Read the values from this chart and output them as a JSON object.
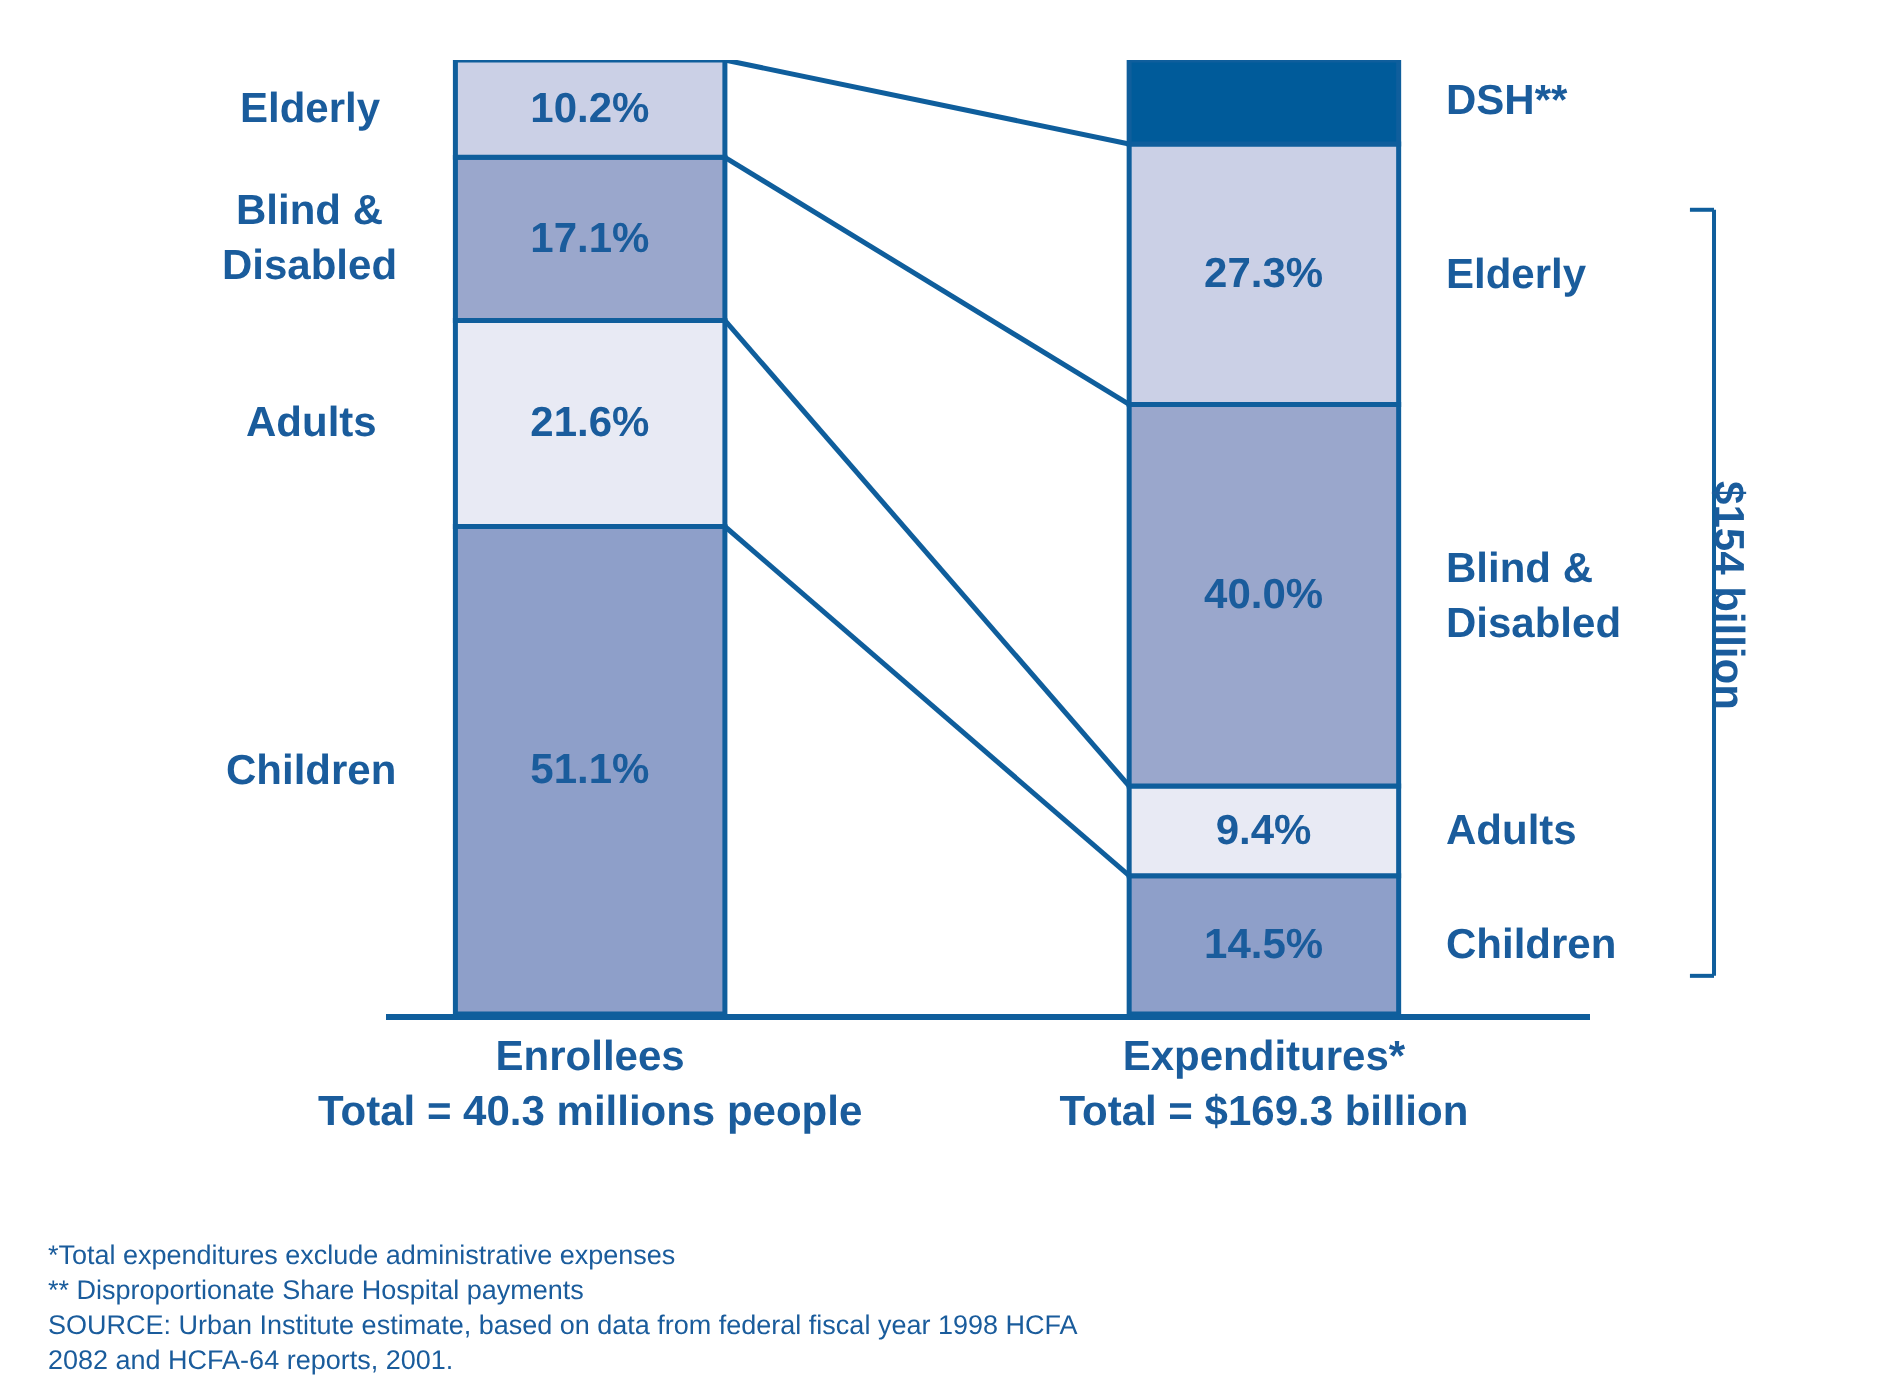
{
  "chart_data": {
    "type": "bar",
    "stacked": true,
    "categories": [
      "Enrollees\nTotal = 40.3 millions people",
      "Expenditures*\nTotal = $169.3 billion"
    ],
    "series": [
      {
        "name": "Children",
        "color": "#8e9fc9",
        "values": [
          51.1,
          14.5
        ],
        "value_labels": [
          "51.1%",
          "14.5%"
        ]
      },
      {
        "name": "Adults",
        "color": "#e8eaf4",
        "values": [
          21.6,
          9.4
        ],
        "value_labels": [
          "21.6%",
          "9.4%"
        ]
      },
      {
        "name": "Blind & Disabled",
        "color": "#9aa7cc",
        "values": [
          17.1,
          40.0
        ],
        "value_labels": [
          "17.1%",
          "40.0%"
        ]
      },
      {
        "name": "Elderly",
        "color": "#cbd0e6",
        "values": [
          10.2,
          27.3
        ],
        "value_labels": [
          "10.2%",
          "27.3%"
        ]
      },
      {
        "name": "DSH**",
        "color": "#005b9a",
        "values": [
          null,
          8.8
        ],
        "value_labels": [
          null,
          null
        ]
      }
    ],
    "legend": false,
    "annotations": [
      "$154 billion",
      "*Total expenditures exclude administrative expenses",
      "** Disproportionate Share Hospital payments",
      "SOURCE: Urban Institute estimate, based on data from federal fiscal year 1998 HCFA\n2082 and HCFA-64 reports, 2001."
    ]
  }
}
